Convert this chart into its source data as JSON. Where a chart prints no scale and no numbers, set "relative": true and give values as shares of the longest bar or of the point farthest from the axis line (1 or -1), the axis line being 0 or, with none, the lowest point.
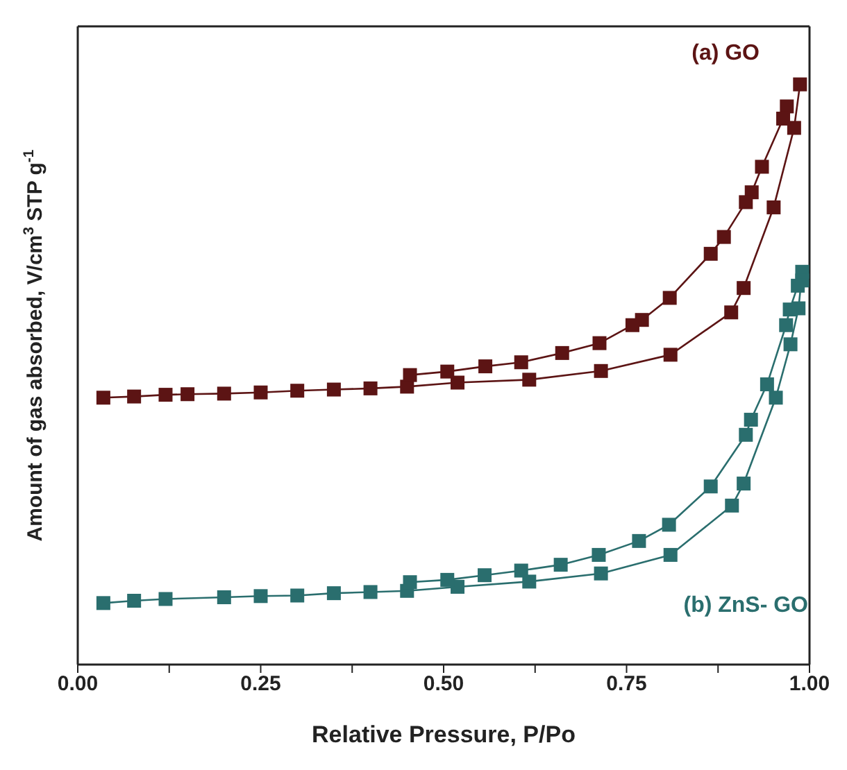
{
  "chart_data": {
    "type": "line",
    "xlabel": "Relative Pressure, P/Po",
    "ylabel": "Amount of gas absorbed, V/cm$^{3}$ STP g$^{-1}$",
    "relative": true,
    "marker": "square",
    "line_style": "solid",
    "xlim": [
      0,
      1
    ],
    "xticks": [
      {
        "value": 0,
        "label": "0.00"
      },
      {
        "value": 0.125,
        "label": null
      },
      {
        "value": 0.25,
        "label": "0.25"
      },
      {
        "value": 0.375,
        "label": null
      },
      {
        "value": 0.5,
        "label": "0.50"
      },
      {
        "value": 0.625,
        "label": null
      },
      {
        "value": 0.75,
        "label": "0.75"
      },
      {
        "value": 0.875,
        "label": null
      },
      {
        "value": 1,
        "label": "1.00"
      }
    ],
    "series": [
      {
        "name": "(a) GO",
        "color": "#5c1414",
        "x": [
          0.035,
          0.077,
          0.12,
          0.15,
          0.2,
          0.25,
          0.3,
          0.35,
          0.4,
          0.45,
          0.519,
          0.617,
          0.715,
          0.81,
          0.893,
          0.91,
          0.951,
          0.979,
          0.987
        ],
        "values": [
          0.46,
          0.462,
          0.465,
          0.466,
          0.467,
          0.469,
          0.472,
          0.474,
          0.476,
          0.479,
          0.486,
          0.491,
          0.506,
          0.534,
          0.607,
          0.649,
          0.788,
          0.925,
          1
        ]
      },
      {
        "color": "#5c1414",
        "x": [
          0.969,
          0.964,
          0.935,
          0.921,
          0.913,
          0.883,
          0.865,
          0.809,
          0.771,
          0.758,
          0.713,
          0.662,
          0.606,
          0.557,
          0.505,
          0.454
        ],
        "values": [
          0.962,
          0.941,
          0.858,
          0.814,
          0.797,
          0.737,
          0.708,
          0.632,
          0.594,
          0.585,
          0.554,
          0.537,
          0.521,
          0.514,
          0.505,
          0.499
        ]
      },
      {
        "name": "(b) ZnS- GO",
        "color": "#2a6e6e",
        "x": [
          0.035,
          0.077,
          0.12,
          0.2,
          0.25,
          0.3,
          0.35,
          0.4,
          0.45,
          0.519,
          0.617,
          0.715,
          0.81,
          0.894,
          0.91,
          0.954,
          0.974,
          0.985,
          0.99
        ],
        "values": [
          0.106,
          0.11,
          0.113,
          0.116,
          0.118,
          0.119,
          0.123,
          0.125,
          0.127,
          0.134,
          0.143,
          0.157,
          0.189,
          0.274,
          0.312,
          0.46,
          0.552,
          0.614,
          0.677
        ]
      },
      {
        "color": "#2a6e6e",
        "x": [
          0.99,
          0.984,
          0.973,
          0.968,
          0.942,
          0.92,
          0.913,
          0.865,
          0.808,
          0.767,
          0.712,
          0.66,
          0.606,
          0.556,
          0.505,
          0.454
        ],
        "values": [
          0.662,
          0.653,
          0.612,
          0.585,
          0.483,
          0.422,
          0.396,
          0.307,
          0.241,
          0.213,
          0.189,
          0.172,
          0.162,
          0.154,
          0.146,
          0.142
        ]
      }
    ]
  }
}
